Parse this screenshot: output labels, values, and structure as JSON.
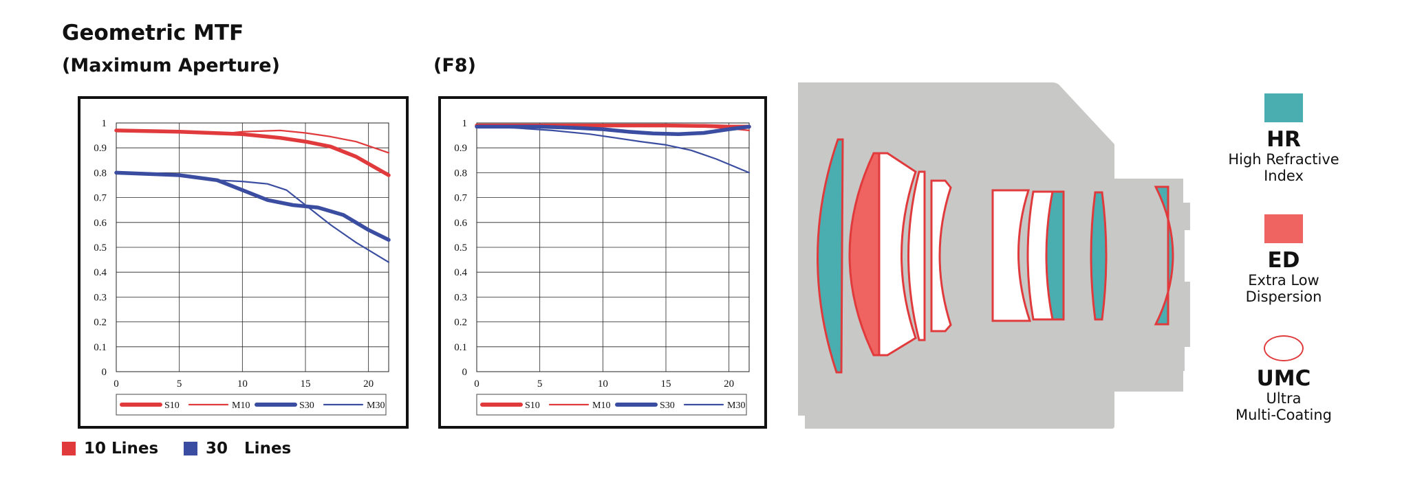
{
  "title": "Geometric MTF",
  "subtitle_left": "(Maximum Aperture)",
  "subtitle_right": "(F8)",
  "legend_bottom": {
    "red": "10 Lines",
    "blue": "30   Lines"
  },
  "colors": {
    "red": "#e03a3c",
    "blue": "#3a4da0",
    "hr": "#4aadb0",
    "ed": "#ef6461",
    "lens_body": "#c8c9c7"
  },
  "key": {
    "hr": {
      "label": "HR",
      "desc1": "High Refractive",
      "desc2": "Index"
    },
    "ed": {
      "label": "ED",
      "desc1": "Extra Low",
      "desc2": "Dispersion"
    },
    "umc": {
      "label": "UMC",
      "desc1": "Ultra",
      "desc2": "Multi-Coating"
    }
  },
  "chart_data": [
    {
      "type": "line",
      "title": "(Maximum Aperture)",
      "xlim": [
        0,
        21.6
      ],
      "ylim": [
        0,
        1
      ],
      "x_ticks": [
        "0",
        "5",
        "10",
        "15",
        "20"
      ],
      "y_ticks": [
        "0",
        "0.1",
        "0.2",
        "0.3",
        "0.4",
        "0.5",
        "0.6",
        "0.7",
        "0.8",
        "0.9",
        "1"
      ],
      "legend": [
        "S10",
        "M10",
        "S30",
        "M30"
      ],
      "grid": true,
      "series": [
        {
          "name": "S10",
          "color": "#e03a3c",
          "style": "thick",
          "x": [
            0,
            5,
            10,
            13,
            15,
            17,
            19,
            21.6
          ],
          "y": [
            0.97,
            0.965,
            0.955,
            0.94,
            0.925,
            0.905,
            0.865,
            0.79
          ]
        },
        {
          "name": "M10",
          "color": "#e03a3c",
          "style": "thin",
          "x": [
            0,
            5,
            8,
            10,
            13,
            15,
            17,
            19,
            21.6
          ],
          "y": [
            0.97,
            0.965,
            0.955,
            0.965,
            0.97,
            0.96,
            0.945,
            0.925,
            0.88
          ]
        },
        {
          "name": "S30",
          "color": "#3a4da0",
          "style": "thick",
          "x": [
            0,
            5,
            8,
            10,
            12,
            14,
            16,
            18,
            20,
            21.6
          ],
          "y": [
            0.8,
            0.79,
            0.77,
            0.73,
            0.69,
            0.67,
            0.66,
            0.63,
            0.57,
            0.53
          ]
        },
        {
          "name": "M30",
          "color": "#3a4da0",
          "style": "thin",
          "x": [
            0,
            5,
            8,
            10,
            12,
            13.5,
            15,
            17,
            19,
            21.6
          ],
          "y": [
            0.8,
            0.79,
            0.77,
            0.765,
            0.755,
            0.73,
            0.67,
            0.59,
            0.52,
            0.44
          ]
        }
      ]
    },
    {
      "type": "line",
      "title": "(F8)",
      "xlim": [
        0,
        21.6
      ],
      "ylim": [
        0,
        1
      ],
      "x_ticks": [
        "0",
        "5",
        "10",
        "15",
        "20"
      ],
      "y_ticks": [
        "0",
        "0.1",
        "0.2",
        "0.3",
        "0.4",
        "0.5",
        "0.6",
        "0.7",
        "0.8",
        "0.9",
        "1"
      ],
      "legend": [
        "S10",
        "M10",
        "S30",
        "M30"
      ],
      "grid": true,
      "series": [
        {
          "name": "S10",
          "color": "#e03a3c",
          "style": "thick",
          "x": [
            0,
            5,
            10,
            15,
            18,
            20,
            21.6
          ],
          "y": [
            0.99,
            0.99,
            0.99,
            0.99,
            0.988,
            0.985,
            0.985
          ]
        },
        {
          "name": "M10",
          "color": "#e03a3c",
          "style": "thin",
          "x": [
            0,
            5,
            10,
            15,
            18,
            20,
            21.6
          ],
          "y": [
            0.99,
            0.99,
            0.99,
            0.99,
            0.985,
            0.978,
            0.97
          ]
        },
        {
          "name": "S30",
          "color": "#3a4da0",
          "style": "thick",
          "x": [
            0,
            5,
            8,
            10,
            12,
            14,
            16,
            18,
            20,
            21.6
          ],
          "y": [
            0.985,
            0.985,
            0.98,
            0.975,
            0.965,
            0.958,
            0.955,
            0.96,
            0.975,
            0.985
          ]
        },
        {
          "name": "M30",
          "color": "#3a4da0",
          "style": "thin",
          "x": [
            0,
            3,
            6,
            9,
            11,
            13,
            15,
            17,
            19,
            21.6
          ],
          "y": [
            0.985,
            0.98,
            0.97,
            0.955,
            0.94,
            0.925,
            0.912,
            0.89,
            0.855,
            0.8
          ]
        }
      ]
    }
  ]
}
